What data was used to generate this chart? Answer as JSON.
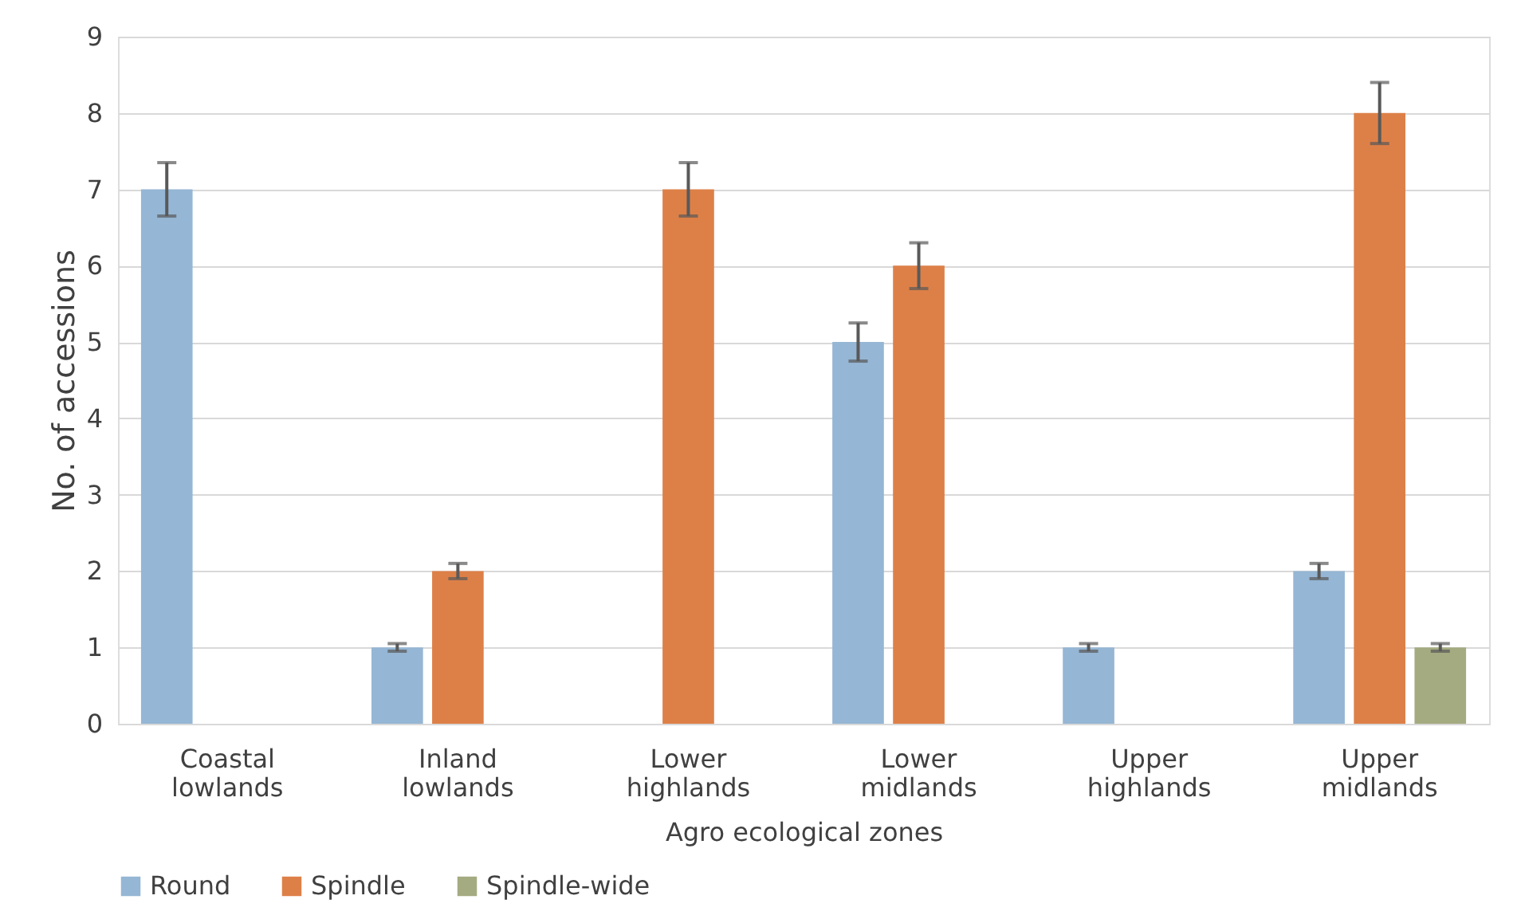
{
  "chart_data": {
    "type": "bar",
    "xlabel": "Agro ecological zones",
    "ylabel": "No. of accessions",
    "categories": [
      "Coastal lowlands",
      "Inland lowlands",
      "Lower highlands",
      "Lower midlands",
      "Upper highlands",
      "Upper midlands"
    ],
    "series": [
      {
        "name": "Round",
        "color": "#95b6d4",
        "values": [
          7,
          1,
          0,
          5,
          1,
          2
        ],
        "errors": [
          0.35,
          0.05,
          null,
          0.25,
          0.05,
          0.1
        ]
      },
      {
        "name": "Spindle",
        "color": "#dd8048",
        "values": [
          0,
          2,
          7,
          6,
          0,
          8
        ],
        "errors": [
          null,
          0.1,
          0.35,
          0.3,
          null,
          0.4
        ]
      },
      {
        "name": "Spindle-wide",
        "color": "#a5ab80",
        "values": [
          0,
          0,
          0,
          0,
          0,
          1
        ],
        "errors": [
          null,
          null,
          null,
          null,
          null,
          0.05
        ]
      }
    ],
    "ylim": [
      0,
      9
    ],
    "yticks": [
      0,
      1,
      2,
      3,
      4,
      5,
      6,
      7,
      8,
      9
    ],
    "grid": "y",
    "legend": "bottom"
  }
}
